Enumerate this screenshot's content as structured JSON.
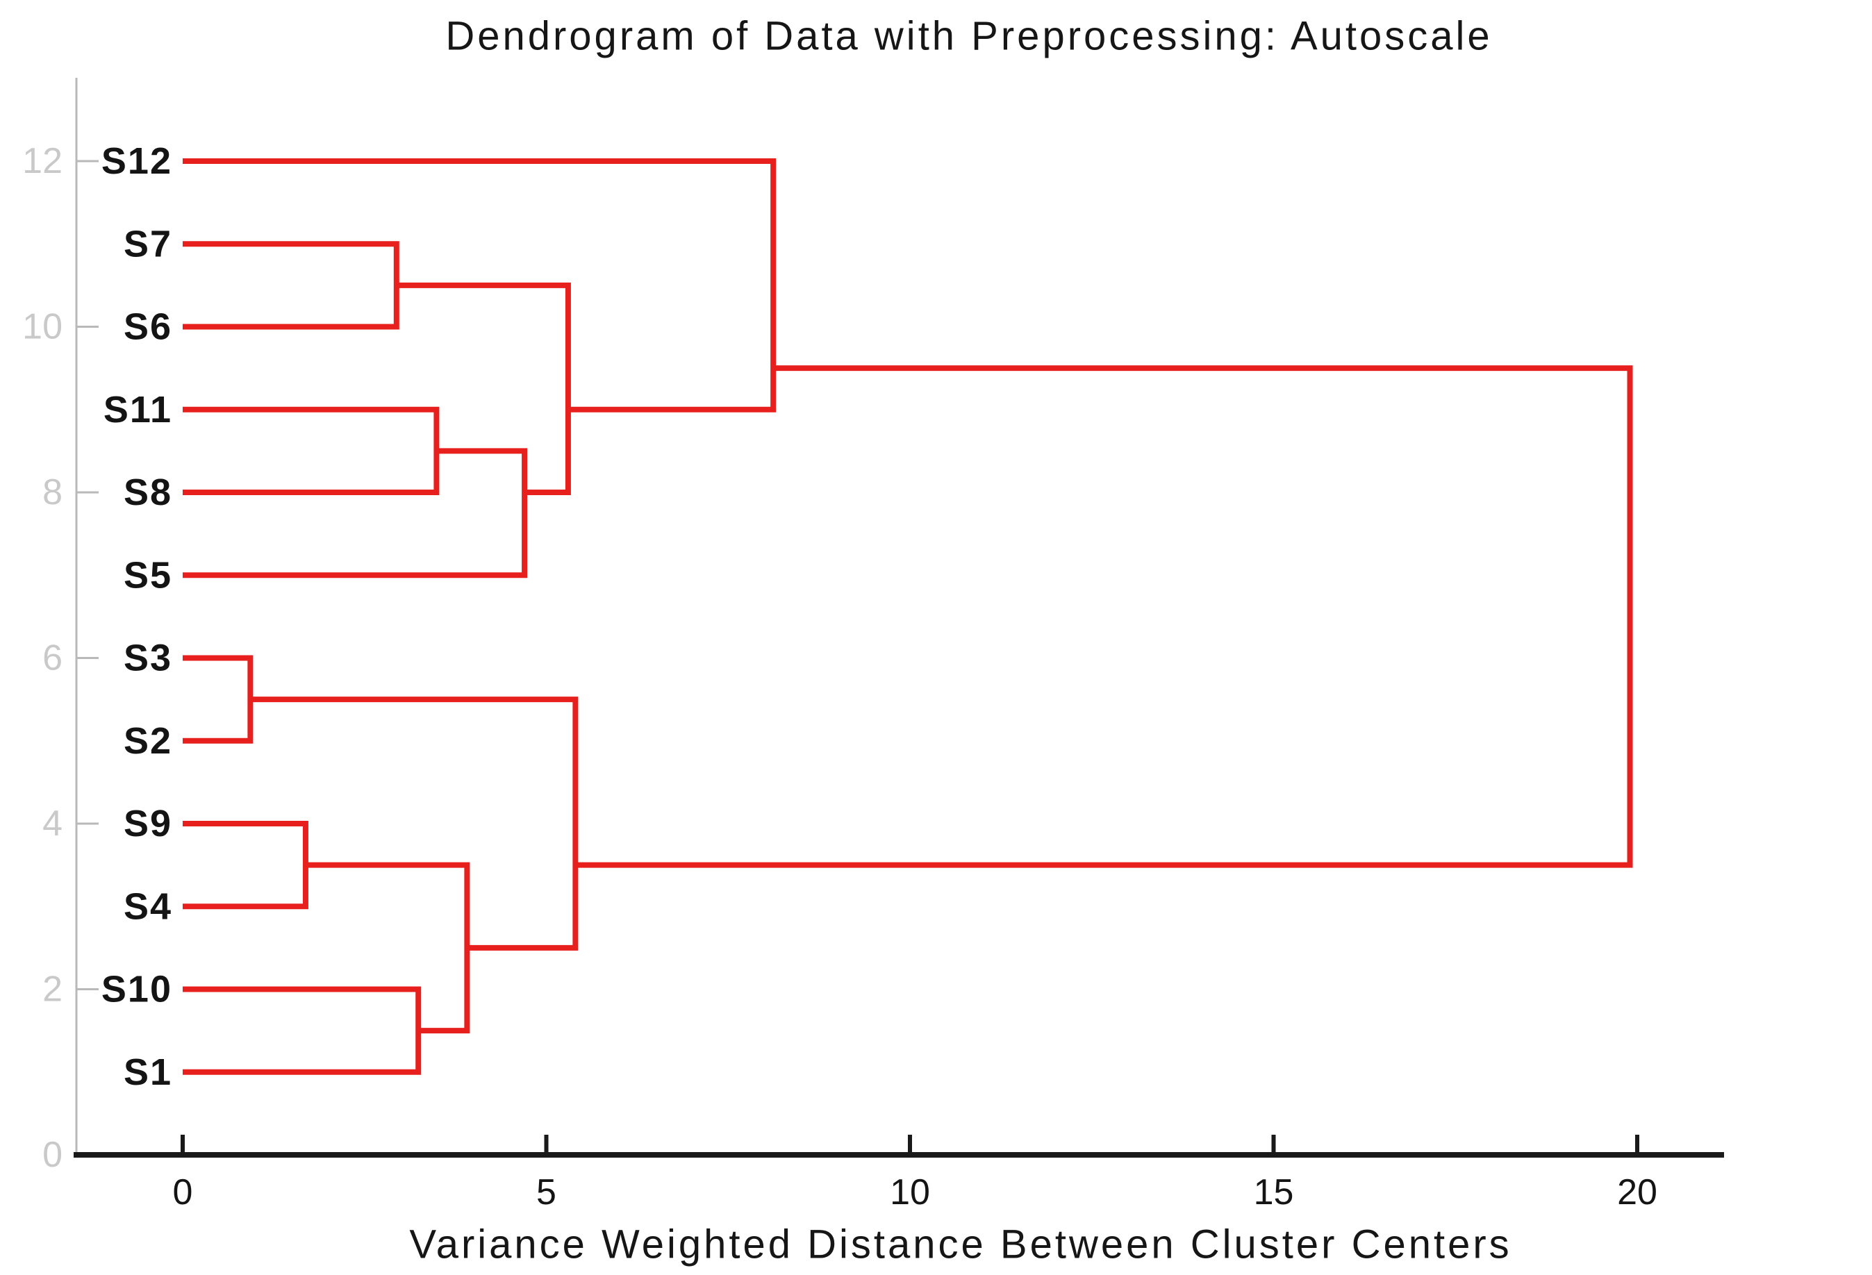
{
  "title": "Dendrogram of Data with Preprocessing: Autoscale",
  "xlabel": "Variance Weighted Distance Between Cluster Centers",
  "colors": {
    "link": "#e7201e",
    "x_axis": "#1a1a1a",
    "y_axis": "#b9b9b9",
    "ytick_label": "#c9c9c9",
    "text": "#161616"
  },
  "chart_data": {
    "type": "dendrogram",
    "orientation": "horizontal",
    "title": "Dendrogram of Data with Preprocessing: Autoscale",
    "xlabel": "Variance Weighted Distance Between Cluster Centers",
    "leaves": [
      {
        "label": "S12",
        "pos": 12
      },
      {
        "label": "S7",
        "pos": 11
      },
      {
        "label": "S6",
        "pos": 10
      },
      {
        "label": "S11",
        "pos": 9
      },
      {
        "label": "S8",
        "pos": 8
      },
      {
        "label": "S5",
        "pos": 7
      },
      {
        "label": "S3",
        "pos": 6
      },
      {
        "label": "S2",
        "pos": 5
      },
      {
        "label": "S9",
        "pos": 4
      },
      {
        "label": "S4",
        "pos": 3
      },
      {
        "label": "S10",
        "pos": 2
      },
      {
        "label": "S1",
        "pos": 1
      }
    ],
    "merges": [
      {
        "id": "S7+S6",
        "a_pos": 11.0,
        "a_dist": 0,
        "b_pos": 10.0,
        "b_dist": 0,
        "dist": 2.94,
        "pos": 10.5
      },
      {
        "id": "S11+S8",
        "a_pos": 9.0,
        "a_dist": 0,
        "b_pos": 8.0,
        "b_dist": 0,
        "dist": 3.49,
        "pos": 8.5
      },
      {
        "id": "(S11,S8)+S5",
        "a_pos": 8.5,
        "a_dist": 3.49,
        "b_pos": 7.0,
        "b_dist": 0,
        "dist": 4.7,
        "pos": 8.0
      },
      {
        "id": "(S7,S6)+(S11..S5)",
        "a_pos": 10.5,
        "a_dist": 2.94,
        "b_pos": 8.0,
        "b_dist": 4.7,
        "dist": 5.3,
        "pos": 9.0
      },
      {
        "id": "S12+top",
        "a_pos": 12.0,
        "a_dist": 0,
        "b_pos": 9.0,
        "b_dist": 5.3,
        "dist": 8.12,
        "pos": 9.5
      },
      {
        "id": "S3+S2",
        "a_pos": 6.0,
        "a_dist": 0,
        "b_pos": 5.0,
        "b_dist": 0,
        "dist": 0.93,
        "pos": 5.5
      },
      {
        "id": "S9+S4",
        "a_pos": 4.0,
        "a_dist": 0,
        "b_pos": 3.0,
        "b_dist": 0,
        "dist": 1.69,
        "pos": 3.5
      },
      {
        "id": "S10+S1",
        "a_pos": 2.0,
        "a_dist": 0,
        "b_pos": 1.0,
        "b_dist": 0,
        "dist": 3.24,
        "pos": 1.5
      },
      {
        "id": "(S9,S4)+(S10,S1)",
        "a_pos": 3.5,
        "a_dist": 1.69,
        "b_pos": 1.5,
        "b_dist": 3.24,
        "dist": 3.91,
        "pos": 2.5
      },
      {
        "id": "(S3,S2)+rest",
        "a_pos": 5.5,
        "a_dist": 0.93,
        "b_pos": 2.5,
        "b_dist": 3.91,
        "dist": 5.4,
        "pos": 3.5
      },
      {
        "id": "root",
        "a_pos": 9.5,
        "a_dist": 8.12,
        "b_pos": 3.5,
        "b_dist": 5.4,
        "dist": 19.9,
        "pos": 6.5
      }
    ],
    "x_axis": {
      "label": "Variance Weighted Distance Between Cluster Centers",
      "ticks": [
        0,
        5,
        10,
        15,
        20
      ],
      "range": [
        0,
        21.2
      ],
      "grid": false
    },
    "y_axis": {
      "ticks": [
        12,
        10,
        8,
        6,
        4,
        2,
        0
      ],
      "range": [
        0,
        13
      ],
      "grid": false
    }
  }
}
